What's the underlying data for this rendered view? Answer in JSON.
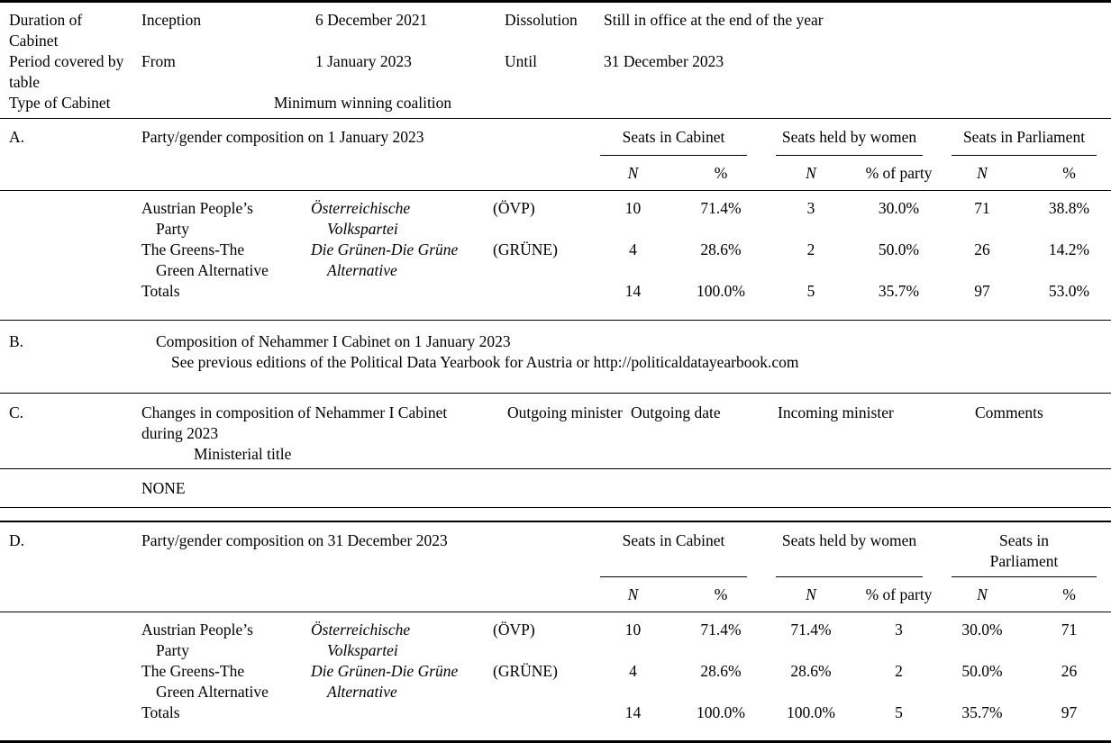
{
  "meta": {
    "rows": [
      {
        "label": "Duration of Cabinet",
        "k1": "Inception",
        "v1": "6 December 2021",
        "k2": "Dissolution",
        "v2": "Still in office at the end of the year"
      },
      {
        "label": "Period covered by table",
        "k1": "From",
        "v1": "1 January 2023",
        "k2": "Until",
        "v2": "31 December 2023"
      },
      {
        "label": "Type of Cabinet",
        "v1": "Minimum winning coalition"
      }
    ]
  },
  "section_a": {
    "label": "A.",
    "title": "Party/gender composition on 1 January 2023",
    "groups": {
      "cabinet": "Seats in Cabinet",
      "women": "Seats held by women",
      "parliament": "Seats in Parliament"
    },
    "subs": {
      "n": "N",
      "pct": "%",
      "pct_party": "% of party"
    },
    "rows": [
      {
        "en1": "Austrian People’s",
        "en2": "Party",
        "de1": "Österreichische",
        "de2": "Volkspartei",
        "abbr": "(ÖVP)",
        "v": [
          "10",
          "71.4%",
          "3",
          "30.0%",
          "71",
          "38.8%"
        ]
      },
      {
        "en1": "The Greens-The",
        "en2": "Green Alternative",
        "de1": "Die Grünen-Die Grüne",
        "de2": "Alternative",
        "abbr": "(GRÜNE)",
        "v": [
          "4",
          "28.6%",
          "2",
          "50.0%",
          "26",
          "14.2%"
        ]
      },
      {
        "en1": "Totals",
        "v": [
          "14",
          "100.0%",
          "5",
          "35.7%",
          "97",
          "53.0%"
        ]
      }
    ]
  },
  "section_b": {
    "label": "B.",
    "line1": "Composition of Nehammer I Cabinet on 1 January 2023",
    "line2_prefix": "See previous editions of the Political Data Yearbook for Austria or ",
    "line2_url": "http://politicaldatayearbook.com"
  },
  "section_c": {
    "label": "C.",
    "title_line1": "Changes in composition of Nehammer I Cabinet",
    "title_line2": "during 2023",
    "subtitle": "Ministerial title",
    "col_outgoing_minister": "Outgoing minister",
    "col_outgoing_date": "Outgoing date",
    "col_incoming_minister": "Incoming minister",
    "col_comments": "Comments",
    "none": "NONE"
  },
  "section_d": {
    "label": "D.",
    "title": "Party/gender composition on 31 December 2023",
    "groups": {
      "cabinet": "Seats in Cabinet",
      "women": "Seats held by women",
      "parliament": "Seats in Parliament"
    },
    "subs": {
      "n": "N",
      "pct": "%",
      "pct_party": "% of party"
    },
    "rows": [
      {
        "en1": "Austrian People’s",
        "en2": "Party",
        "de1": "Österreichische",
        "de2": "Volkspartei",
        "abbr": "(ÖVP)",
        "v": [
          "10",
          "71.4%",
          "71.4%",
          "3",
          "30.0%",
          "71"
        ]
      },
      {
        "en1": "The Greens-The",
        "en2": "Green Alternative",
        "de1": "Die Grünen-Die Grüne",
        "de2": "Alternative",
        "abbr": "(GRÜNE)",
        "v": [
          "4",
          "28.6%",
          "28.6%",
          "2",
          "50.0%",
          "26"
        ]
      },
      {
        "en1": "Totals",
        "v": [
          "14",
          "100.0%",
          "100.0%",
          "5",
          "35.7%",
          "97"
        ]
      }
    ]
  }
}
